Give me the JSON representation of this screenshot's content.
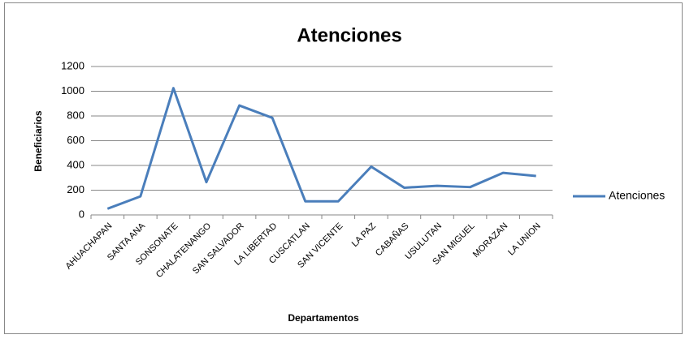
{
  "chart_data": {
    "type": "line",
    "title": "Atenciones",
    "x_label": "Departamentos",
    "y_label": "Beneficiarios",
    "categories": [
      "AHUACHAPAN",
      "SANTA ANA",
      "SONSONATE",
      "CHALATENANGO",
      "SAN SALVADOR",
      "LA LIBERTAD",
      "CUSCATLAN",
      "SAN VICENTE",
      "LA PAZ",
      "CABAÑAS",
      "USULUTAN",
      "SAN MIGUEL",
      "MORAZAN",
      "LA UNION"
    ],
    "series": [
      {
        "name": "Atenciones",
        "color": "#4a7ebb",
        "values": [
          50,
          150,
          1025,
          265,
          885,
          785,
          110,
          110,
          390,
          220,
          235,
          225,
          340,
          315
        ]
      }
    ],
    "ylim": [
      0,
      1200
    ],
    "yticks": [
      0,
      200,
      400,
      600,
      800,
      1000,
      1200
    ],
    "grid": true,
    "legend": "right"
  }
}
